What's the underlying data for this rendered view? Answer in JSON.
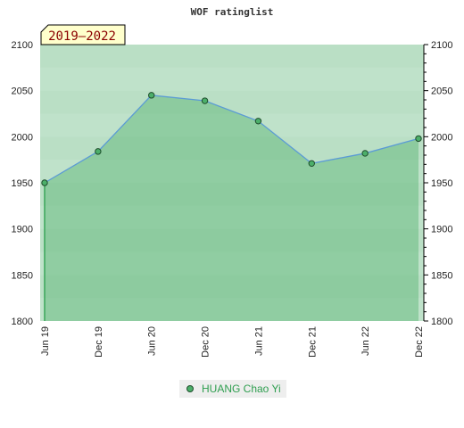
{
  "colors": {
    "band_light": "#e9f5ec",
    "area_fill": "#3aa65a",
    "line": "#5b9bd5",
    "marker": "#4caf6a",
    "marker_stroke": "#1f4d2c",
    "period_box_fill": "#ffffcc",
    "legend_box": "#eeeeee",
    "legend_text": "#2e9e4f"
  },
  "chart_data": {
    "type": "area",
    "title": "WOF ratinglist",
    "period_label": "2019–2022",
    "xlabel": "",
    "ylabel": "",
    "x": [
      "Jun 19",
      "Dec 19",
      "Jun 20",
      "Dec 20",
      "Jun 21",
      "Dec 21",
      "Jun 22",
      "Dec 22"
    ],
    "ylim": [
      1800,
      2100
    ],
    "yticks": [
      1800,
      1850,
      1900,
      1950,
      2000,
      2050,
      2100
    ],
    "legend_position": "bottom-center",
    "grid": false,
    "series": [
      {
        "name": "HUANG Chao Yi",
        "values": [
          1950,
          1984,
          2045,
          2039,
          2017,
          1971,
          1982,
          1998
        ]
      }
    ]
  }
}
